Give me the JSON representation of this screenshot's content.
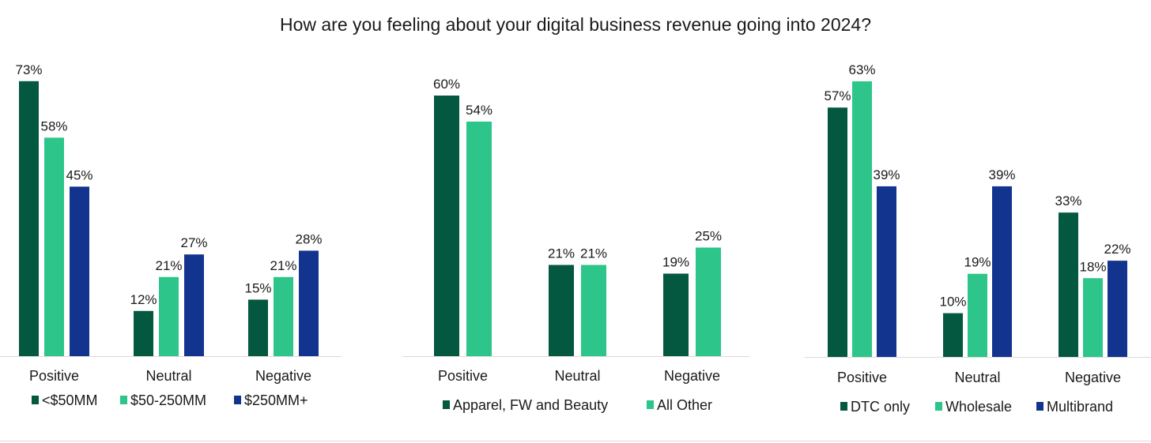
{
  "title": "How are you feeling about your digital business revenue going into 2024?",
  "colors": {
    "dark_green": "#045840",
    "light_green": "#2dc589",
    "navy": "#12348f",
    "axis": "#d9d9d9"
  },
  "chart_data": [
    {
      "type": "bar",
      "categories": [
        "Positive",
        "Neutral",
        "Negative"
      ],
      "ylim": [
        0,
        80
      ],
      "grid": false,
      "legend_position": "bottom",
      "series": [
        {
          "name": "<$50MM",
          "color": "#045840",
          "values": [
            73,
            12,
            15
          ],
          "labels": [
            "73%",
            "12%",
            "15%"
          ]
        },
        {
          "name": "$50-250MM",
          "color": "#2dc589",
          "values": [
            58,
            21,
            21
          ],
          "labels": [
            "58%",
            "21%",
            "21%"
          ]
        },
        {
          "name": "$250MM+",
          "color": "#12348f",
          "values": [
            45,
            27,
            28
          ],
          "labels": [
            "45%",
            "27%",
            "28%"
          ]
        }
      ]
    },
    {
      "type": "bar",
      "categories": [
        "Positive",
        "Neutral",
        "Negative"
      ],
      "ylim": [
        0,
        80
      ],
      "grid": false,
      "legend_position": "bottom",
      "series": [
        {
          "name": "Apparel, FW and Beauty",
          "color": "#045840",
          "values": [
            60,
            21,
            19
          ],
          "labels": [
            "60%",
            "21%",
            "19%"
          ]
        },
        {
          "name": "All Other",
          "color": "#2dc589",
          "values": [
            54,
            21,
            25
          ],
          "labels": [
            "54%",
            "21%",
            "25%"
          ]
        }
      ]
    },
    {
      "type": "bar",
      "categories": [
        "Positive",
        "Neutral",
        "Negative"
      ],
      "ylim": [
        0,
        80
      ],
      "grid": false,
      "legend_position": "bottom",
      "series": [
        {
          "name": "DTC only",
          "color": "#045840",
          "values": [
            57,
            10,
            33
          ],
          "labels": [
            "57%",
            "10%",
            "33%"
          ]
        },
        {
          "name": "Wholesale",
          "color": "#2dc589",
          "values": [
            63,
            19,
            18
          ],
          "labels": [
            "63%",
            "19%",
            "18%"
          ]
        },
        {
          "name": "Multibrand",
          "color": "#12348f",
          "values": [
            39,
            39,
            22
          ],
          "labels": [
            "39%",
            "39%",
            "22%"
          ]
        }
      ]
    }
  ]
}
